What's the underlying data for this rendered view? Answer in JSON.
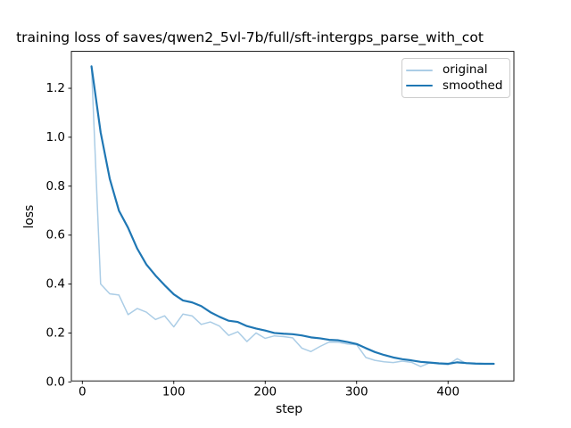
{
  "figure": {
    "title": "training loss of saves/qwen2_5vl-7b/full/sft-intergps_parse_with_cot",
    "xlabel": "step",
    "ylabel": "loss"
  },
  "chart_data": {
    "type": "line",
    "title": "training loss of saves/qwen2_5vl-7b/full/sft-intergps_parse_with_cot",
    "xlabel": "step",
    "ylabel": "loss",
    "grid": false,
    "legend_position": "upper right",
    "xlim": [
      -12,
      472
    ],
    "ylim": [
      0.004,
      1.351
    ],
    "xticks": [
      0,
      100,
      200,
      300,
      400
    ],
    "yticks": [
      0.0,
      0.2,
      0.4,
      0.6,
      0.8,
      1.0,
      1.2
    ],
    "x": [
      10,
      20,
      30,
      40,
      50,
      60,
      70,
      80,
      90,
      100,
      110,
      120,
      130,
      140,
      150,
      160,
      170,
      180,
      190,
      200,
      210,
      220,
      230,
      240,
      250,
      260,
      270,
      280,
      290,
      300,
      310,
      320,
      330,
      340,
      350,
      360,
      370,
      380,
      390,
      400,
      410,
      420,
      430,
      440,
      450
    ],
    "series": [
      {
        "name": "original",
        "color": "#abcde6",
        "linewidth": 1.5,
        "values": [
          1.29,
          0.4,
          0.36,
          0.355,
          0.275,
          0.3,
          0.285,
          0.255,
          0.27,
          0.225,
          0.277,
          0.27,
          0.235,
          0.245,
          0.228,
          0.19,
          0.205,
          0.165,
          0.2,
          0.178,
          0.188,
          0.185,
          0.18,
          0.138,
          0.124,
          0.145,
          0.163,
          0.162,
          0.155,
          0.152,
          0.1,
          0.088,
          0.082,
          0.079,
          0.085,
          0.08,
          0.063,
          0.078,
          0.073,
          0.071,
          0.095,
          0.075,
          0.074,
          0.075,
          0.075
        ]
      },
      {
        "name": "smoothed",
        "color": "#1f77b4",
        "linewidth": 2.2,
        "values": [
          1.29,
          1.02,
          0.83,
          0.7,
          0.63,
          0.545,
          0.48,
          0.435,
          0.395,
          0.358,
          0.333,
          0.325,
          0.31,
          0.285,
          0.266,
          0.25,
          0.245,
          0.228,
          0.218,
          0.21,
          0.2,
          0.197,
          0.195,
          0.19,
          0.182,
          0.178,
          0.172,
          0.17,
          0.163,
          0.155,
          0.138,
          0.122,
          0.11,
          0.1,
          0.093,
          0.088,
          0.082,
          0.079,
          0.076,
          0.074,
          0.08,
          0.077,
          0.075,
          0.074,
          0.074
        ]
      }
    ]
  }
}
